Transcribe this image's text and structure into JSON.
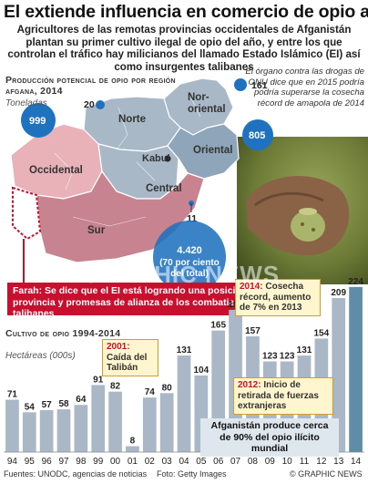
{
  "header": {
    "title": "El extiende influencia en comercio de opio afgano",
    "intro": "Agricultores de las remotas provincias occidentales de Afganistán plantan su primer cultivo ilegal de opio del año, y entre los que controlan el tráfico hay milicianos del llamado Estado Islámico (EI) así como insurgentes talibanes"
  },
  "map": {
    "title": "Producción potencial de opio por región afgana, 2014",
    "unit": "Toneladas",
    "note": "El órgano contra las drogas de ONU dice que en 2015 podría podría superarse la cosecha récord de amapola de 2014",
    "regions": [
      {
        "name": "Nor-",
        "name2": "oriental",
        "value": "161"
      },
      {
        "name": "Norte",
        "value": "20"
      },
      {
        "name": "Occidental",
        "value": "999"
      },
      {
        "name": "Oriental",
        "value": "805"
      },
      {
        "name": "Central",
        "value": "11"
      },
      {
        "name": "Sur",
        "value": "4.420",
        "value_note": "(70 por ciento del total)"
      }
    ],
    "capital": "Kabul",
    "farah_note": "Farah: Se dice que el EI está logrando una posición en la provincia y promesas de alianza de los combatientes talibanes",
    "colors": {
      "sur": "#c7838f",
      "occidental": "#e9b2b8",
      "north": "#a9b8c6",
      "oriental": "#8fa6ba",
      "bubble": "#1f72bf",
      "highlight": "#c8102e"
    }
  },
  "chart_data": {
    "type": "bar",
    "title": "Cultivo de opio 1994-2014",
    "unit": "Hectáreas (000s)",
    "categories": [
      "94",
      "95",
      "96",
      "97",
      "98",
      "99",
      "00",
      "01",
      "02",
      "03",
      "04",
      "05",
      "06",
      "07",
      "08",
      "09",
      "10",
      "11",
      "12",
      "13",
      "14"
    ],
    "values": [
      71,
      54,
      57,
      58,
      64,
      91,
      82,
      8,
      74,
      80,
      131,
      104,
      165,
      193,
      157,
      123,
      123,
      131,
      154,
      209,
      224
    ],
    "ylim": [
      0,
      230
    ],
    "colors": {
      "bar": "#a9b7c6",
      "last_bar": "#5f8da8"
    }
  },
  "annotations": [
    {
      "year": "2001:",
      "text": "Caída del Talibán"
    },
    {
      "year": "2014:",
      "text": "Cosecha récord, aumento de 7% en 2013"
    },
    {
      "year": "2012:",
      "text": "Inicio de retirada de fuerzas extranjeras"
    }
  ],
  "summary": "Afganistán produce cerca de 90% del opio ilícito mundial",
  "watermark": "GRAPHIC NEWS",
  "footer": {
    "sources": "Fuentes: UNODC, agencias de noticias",
    "photo": "Foto: Getty Images",
    "brand": "© GRAPHIC NEWS"
  }
}
